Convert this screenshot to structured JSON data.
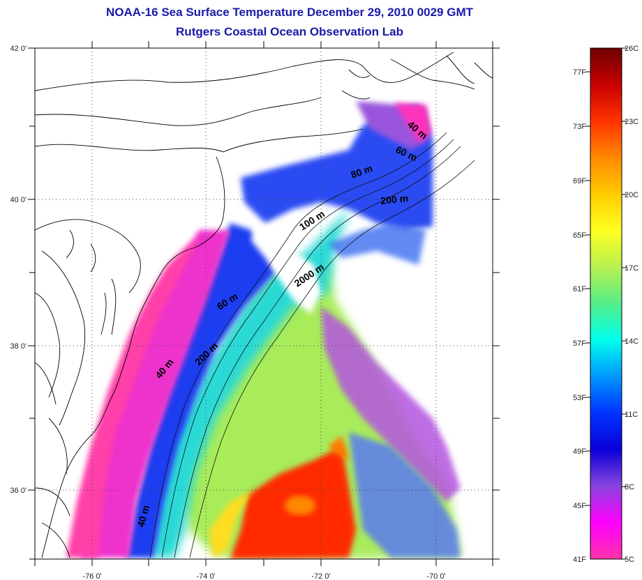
{
  "title_line1": "NOAA-16 Sea Surface Temperature December 29, 2010 0029 GMT",
  "title_line2": "Rutgers Coastal Ocean Observation Lab",
  "map": {
    "lat_ticks": [
      "42 0'",
      "40 0'",
      "38 0'",
      "36 0'"
    ],
    "lon_ticks": [
      "-76 0'",
      "-74 0'",
      "-72 0'",
      "-70 0'"
    ],
    "grid": "dotted",
    "contour_labels": [
      "40 m",
      "60 m",
      "80 m",
      "200 m",
      "100 m",
      "2000 m",
      "60 m",
      "40 m",
      "200 m",
      "40 m"
    ]
  },
  "colorbar": {
    "celsius_labels": [
      "26C",
      "23C",
      "20C",
      "17C",
      "14C",
      "11C",
      "8C",
      "5C"
    ],
    "fahrenheit_labels": [
      "77F",
      "73F",
      "69F",
      "65F",
      "61F",
      "57F",
      "53F",
      "49F",
      "45F",
      "41F"
    ],
    "gradient_colors": [
      "#6e0000",
      "#c80000",
      "#ff3300",
      "#ff8800",
      "#ffcc00",
      "#ffff22",
      "#b8f050",
      "#55ee88",
      "#00ffee",
      "#0096ff",
      "#0033ff",
      "#0a00d8",
      "#8844dd",
      "#ff00ff",
      "#ff33aa"
    ]
  },
  "colors": {
    "title": "#1a1aa8",
    "land_outline": "#000000",
    "cloud_mask": "#ffffff"
  }
}
